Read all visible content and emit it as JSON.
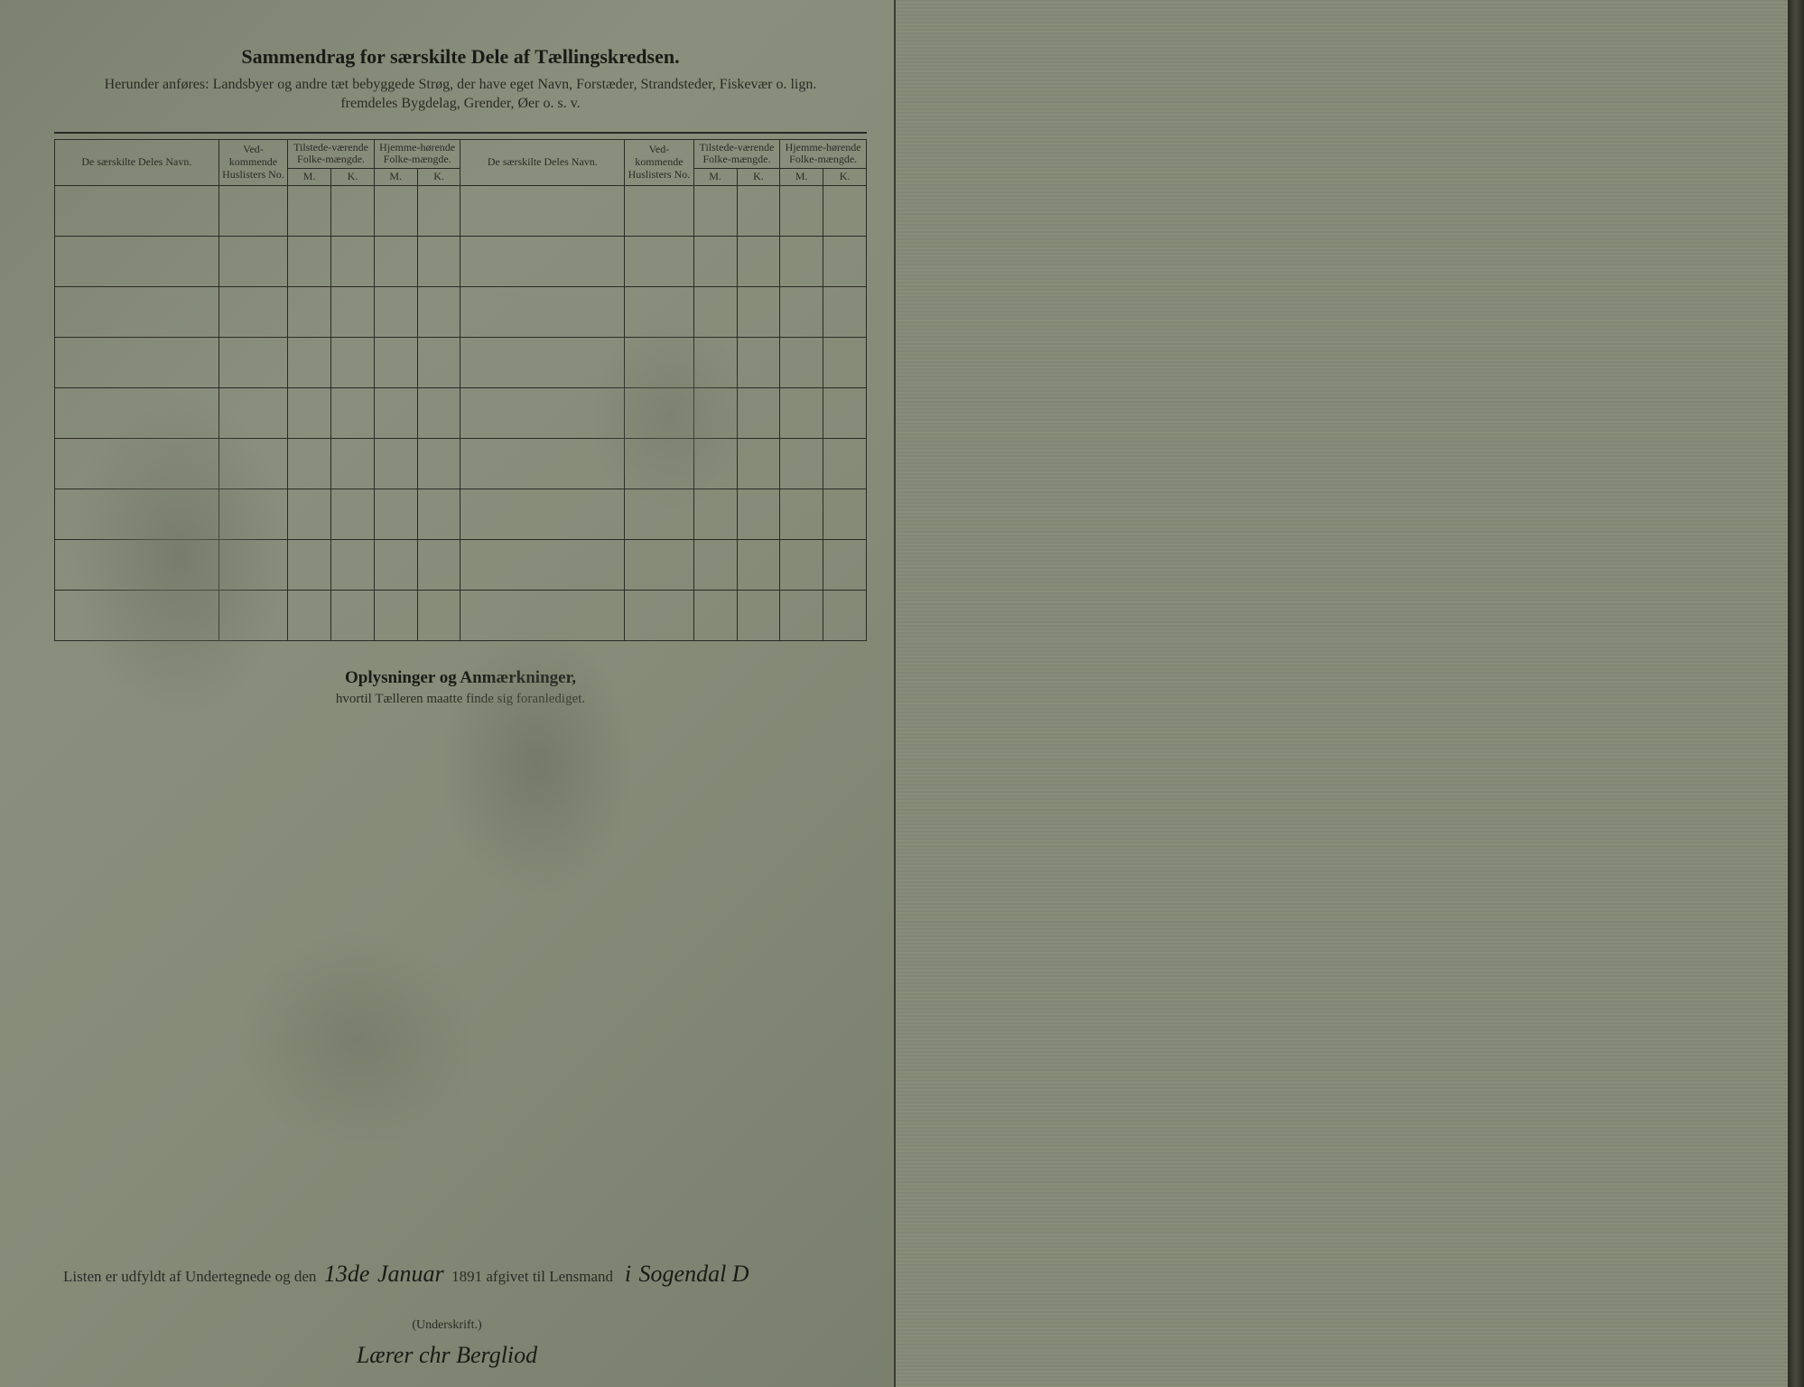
{
  "header": {
    "title": "Sammendrag for særskilte Dele af Tællingskredsen.",
    "subtitle_line1": "Herunder anføres: Landsbyer og andre tæt bebyggede Strøg, der have eget Navn, Forstæder, Strandsteder, Fiskevær o. lign.",
    "subtitle_line2": "fremdeles Bygdelag, Grender, Øer o. s. v.",
    "title_fontsize": 22
  },
  "table": {
    "columns": {
      "name": "De særskilte Deles Navn.",
      "huslister": "Ved-kommende Huslisters No.",
      "tilstede": "Tilstede-værende Folke-mængde.",
      "hjemme": "Hjemme-hørende Folke-mængde.",
      "m": "M.",
      "k": "K."
    },
    "row_count": 9,
    "colors": {
      "border": "#2a2a24",
      "text": "#2a2a24"
    }
  },
  "section2": {
    "title": "Oplysninger og Anmærkninger,",
    "subtitle": "hvortil Tælleren maatte finde sig foranlediget."
  },
  "footer": {
    "prefix": "Listen er udfyldt af Undertegnede og den",
    "date_day": "13de",
    "date_month": "Januar",
    "year_text": "1891 afgivet til Lensmand",
    "place_prefix": "i",
    "place": "Sogendal D",
    "underskrift_label": "(Underskrift.)",
    "signature": "Lærer  chr  Bergliod"
  },
  "colors": {
    "paper": "#8a8f7d",
    "ink": "#1a1a16",
    "faded_ink": "#2a2a24",
    "right_page_texture": "#888d7a"
  }
}
